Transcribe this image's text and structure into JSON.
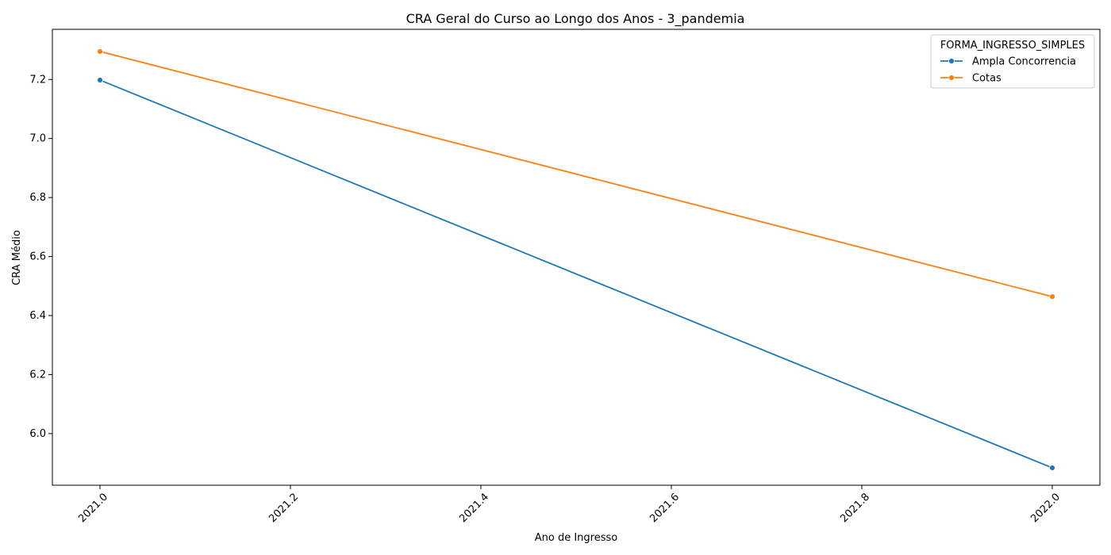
{
  "chart_data": {
    "type": "line",
    "title": "CRA Geral do Curso ao Longo dos Anos - 3_pandemia",
    "xlabel": "Ano de Ingresso",
    "ylabel": "CRA Médio",
    "xlim": [
      1999.95,
      2022.05
    ],
    "ylim": [
      5.825,
      7.37
    ],
    "xticks": [
      2021.0,
      2021.2,
      2021.4,
      2021.6,
      2021.8,
      2022.0
    ],
    "xtick_labels": [
      "2021.0",
      "2021.2",
      "2021.4",
      "2021.6",
      "2021.8",
      "2022.0"
    ],
    "yticks": [
      6.0,
      6.2,
      6.4,
      6.6,
      6.8,
      7.0,
      7.2
    ],
    "ytick_labels": [
      "6.0",
      "6.2",
      "6.4",
      "6.6",
      "6.8",
      "7.0",
      "7.2"
    ],
    "x_tick_rotation": -45,
    "grid": false,
    "legend": {
      "title": "FORMA_INGRESSO_SIMPLES",
      "placement": "top-right"
    },
    "series": [
      {
        "name": "Ampla Concorrencia",
        "color": "#1f77b4",
        "marker": "circle",
        "x": [
          2021.0,
          2022.0
        ],
        "y": [
          7.198,
          5.884
        ]
      },
      {
        "name": "Cotas",
        "color": "#ff7f0e",
        "marker": "circle",
        "x": [
          2021.0,
          2022.0
        ],
        "y": [
          7.295,
          6.464
        ]
      }
    ]
  }
}
